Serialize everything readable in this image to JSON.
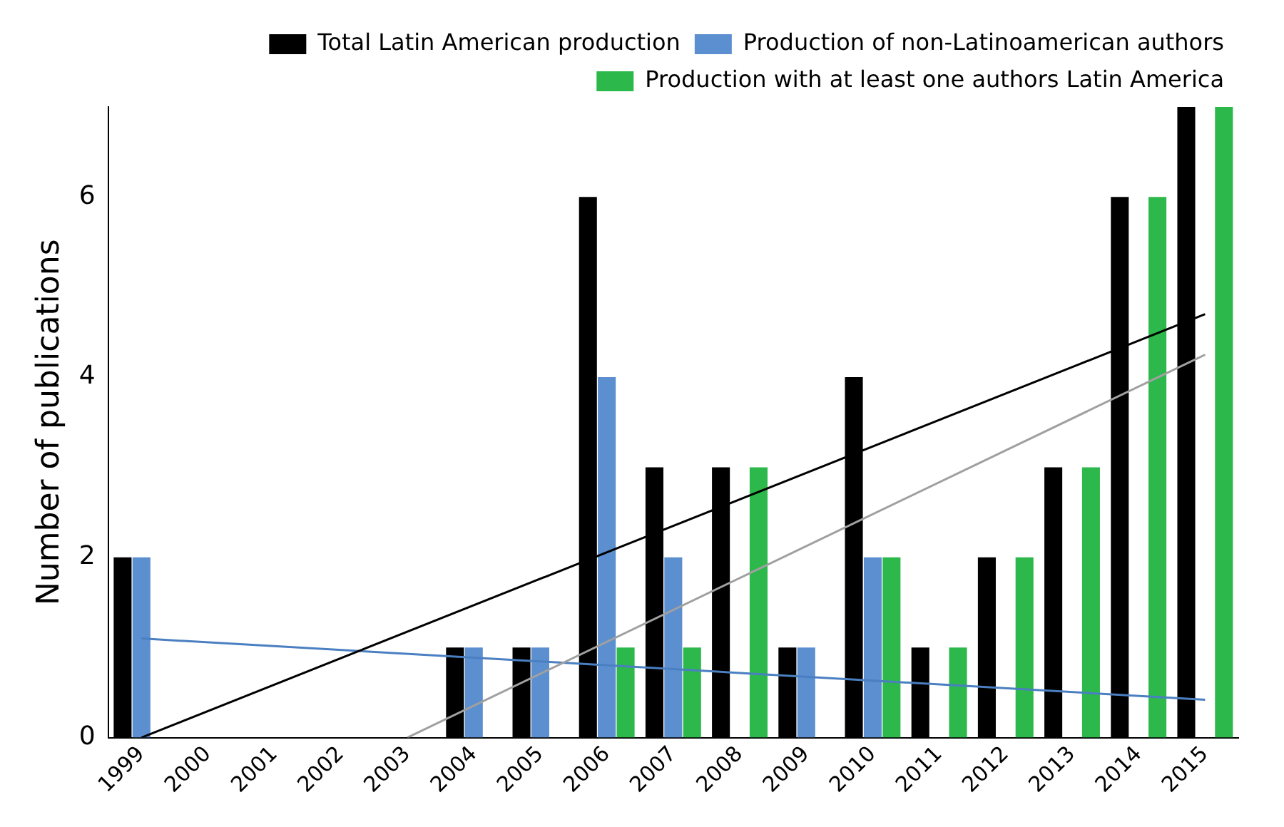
{
  "chart_data": {
    "type": "bar",
    "ylabel": "Number of publications",
    "categories": [
      "1999",
      "2000",
      "2001",
      "2002",
      "2003",
      "2004",
      "2005",
      "2006",
      "2007",
      "2008",
      "2009",
      "2010",
      "2011",
      "2012",
      "2013",
      "2014",
      "2015"
    ],
    "series": [
      {
        "name": "Total Latin American production",
        "color": "#000000",
        "values": [
          2,
          0,
          0,
          0,
          0,
          1,
          1,
          6,
          3,
          3,
          1,
          4,
          1,
          2,
          3,
          6,
          7
        ]
      },
      {
        "name": "Production of non-Latinoamerican authors",
        "color": "#5b8fd0",
        "values": [
          2,
          0,
          0,
          0,
          0,
          1,
          1,
          4,
          2,
          0,
          1,
          2,
          0,
          0,
          0,
          0,
          0
        ]
      },
      {
        "name": "Production with at least one authors Latin America",
        "color": "#2db84b",
        "values": [
          0,
          0,
          0,
          0,
          0,
          0,
          0,
          1,
          1,
          3,
          0,
          2,
          1,
          2,
          3,
          6,
          7
        ]
      },
      {
        "type": "line",
        "color": "#000000",
        "values": [
          0,
          null,
          null,
          null,
          null,
          null,
          null,
          null,
          null,
          null,
          null,
          null,
          null,
          null,
          null,
          null,
          4.7
        ],
        "marker": "none"
      },
      {
        "type": "line",
        "color": "#a0a0a0",
        "values": [
          null,
          null,
          null,
          null,
          0,
          null,
          null,
          null,
          null,
          null,
          null,
          null,
          null,
          null,
          null,
          null,
          4.25
        ],
        "marker": "none"
      },
      {
        "type": "line",
        "color": "#4a7fc1",
        "values": [
          1.1,
          null,
          null,
          null,
          null,
          null,
          null,
          null,
          null,
          null,
          null,
          null,
          null,
          null,
          null,
          null,
          0.42
        ],
        "marker": "none"
      }
    ],
    "ylim": [
      0,
      7
    ],
    "yticks": [
      0,
      2,
      4,
      6
    ],
    "grid": false,
    "legend": "top right"
  }
}
